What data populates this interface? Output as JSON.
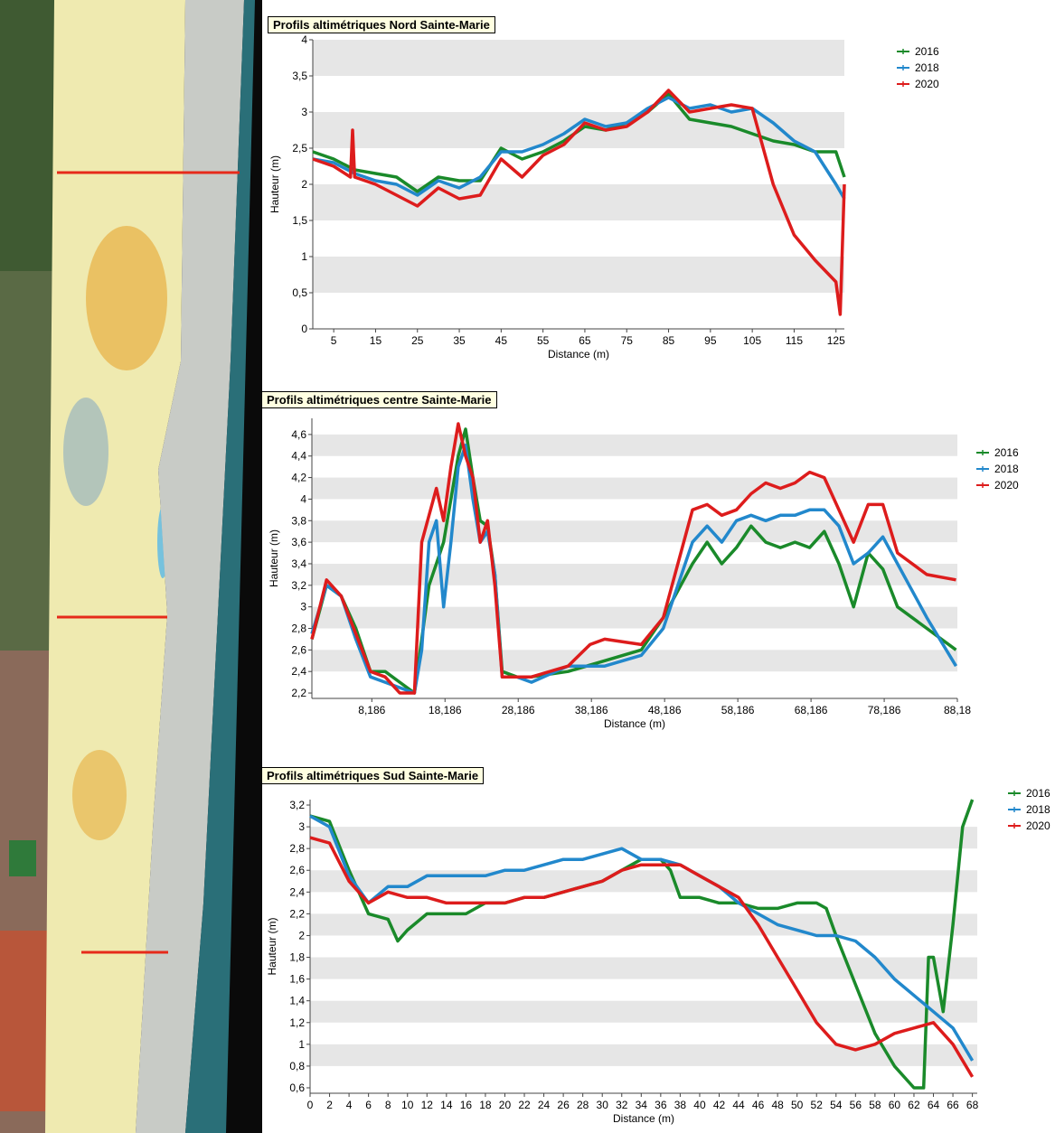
{
  "colors": {
    "2016": "#1a8a2a",
    "2018": "#2288cc",
    "2020": "#dd1c1c",
    "band": "#e6e6e6"
  },
  "map": {
    "description_icon": "aerial-photo"
  },
  "chart_data": [
    {
      "type": "line",
      "title": "Profils altimétriques Nord Sainte-Marie",
      "xlabel": "Distance (m)",
      "ylabel": "Hauteur (m)",
      "xlim": [
        0,
        127
      ],
      "ylim": [
        0,
        4
      ],
      "xticks": [
        5,
        15,
        25,
        35,
        45,
        55,
        65,
        75,
        85,
        95,
        105,
        115,
        125
      ],
      "xtick_labels": [
        "5",
        "15",
        "25",
        "35",
        "45",
        "55",
        "65",
        "75",
        "85",
        "95",
        "105",
        "115",
        "125"
      ],
      "yticks": [
        0,
        0.5,
        1,
        1.5,
        2,
        2.5,
        3,
        3.5,
        4
      ],
      "ytick_labels": [
        "0",
        "0,5",
        "1",
        "1,5",
        "2",
        "2,5",
        "3",
        "3,5",
        "4"
      ],
      "legend_position": "right",
      "series": [
        {
          "name": "2016",
          "color": "#1a8a2a",
          "x": [
            0,
            5,
            10,
            15,
            20,
            25,
            30,
            35,
            40,
            45,
            50,
            55,
            60,
            65,
            70,
            75,
            80,
            85,
            90,
            95,
            100,
            105,
            110,
            115,
            120,
            125,
            127
          ],
          "y": [
            2.45,
            2.35,
            2.2,
            2.15,
            2.1,
            1.9,
            2.1,
            2.05,
            2.05,
            2.5,
            2.35,
            2.45,
            2.6,
            2.8,
            2.75,
            2.85,
            3.0,
            3.25,
            2.9,
            2.85,
            2.8,
            2.7,
            2.6,
            2.55,
            2.45,
            2.45,
            2.1
          ]
        },
        {
          "name": "2018",
          "color": "#2288cc",
          "x": [
            0,
            5,
            10,
            15,
            20,
            25,
            30,
            35,
            40,
            45,
            50,
            55,
            60,
            65,
            70,
            75,
            80,
            85,
            90,
            95,
            100,
            105,
            110,
            115,
            120,
            125,
            127
          ],
          "y": [
            2.35,
            2.3,
            2.15,
            2.05,
            2.0,
            1.85,
            2.05,
            1.95,
            2.1,
            2.45,
            2.45,
            2.55,
            2.7,
            2.9,
            2.8,
            2.85,
            3.05,
            3.2,
            3.05,
            3.1,
            3.0,
            3.05,
            2.85,
            2.6,
            2.45,
            2.0,
            1.8
          ]
        },
        {
          "name": "2020",
          "color": "#dd1c1c",
          "x": [
            0,
            5,
            9,
            9.5,
            10,
            15,
            20,
            25,
            30,
            35,
            40,
            45,
            50,
            55,
            60,
            65,
            70,
            75,
            80,
            85,
            90,
            95,
            100,
            105,
            110,
            115,
            120,
            125,
            126,
            127
          ],
          "y": [
            2.35,
            2.25,
            2.1,
            2.75,
            2.1,
            2.0,
            1.85,
            1.7,
            1.95,
            1.8,
            1.85,
            2.35,
            2.1,
            2.4,
            2.55,
            2.85,
            2.75,
            2.8,
            3.0,
            3.3,
            3.0,
            3.05,
            3.1,
            3.05,
            2.0,
            1.3,
            0.95,
            0.65,
            0.2,
            2.0
          ]
        }
      ]
    },
    {
      "type": "line",
      "title": "Profils altimétriques centre Sainte-Marie",
      "xlabel": "Distance (m)",
      "ylabel": "Hauteur (m)",
      "xlim": [
        0,
        88.18
      ],
      "ylim": [
        2.15,
        4.75
      ],
      "xticks": [
        8.186,
        18.186,
        28.186,
        38.186,
        48.186,
        58.186,
        68.186,
        78.186,
        88.18
      ],
      "xtick_labels": [
        "8,186",
        "18,186",
        "28,186",
        "38,186",
        "48,186",
        "58,186",
        "68,186",
        "78,186",
        "88,18"
      ],
      "yticks": [
        2.2,
        2.4,
        2.6,
        2.8,
        3,
        3.2,
        3.4,
        3.6,
        3.8,
        4,
        4.2,
        4.4,
        4.6
      ],
      "ytick_labels": [
        "2,2",
        "2,4",
        "2,6",
        "2,8",
        "3",
        "3,2",
        "3,4",
        "3,6",
        "3,8",
        "4",
        "4,2",
        "4,4",
        "4,6"
      ],
      "legend_position": "right",
      "series": [
        {
          "name": "2016",
          "color": "#1a8a2a",
          "x": [
            0,
            2,
            4,
            6,
            8,
            10,
            12,
            14,
            16,
            17,
            18,
            19,
            20,
            21,
            22,
            23,
            24,
            25,
            26,
            28,
            30,
            35,
            40,
            45,
            48,
            52,
            54,
            56,
            58,
            60,
            62,
            64,
            66,
            68,
            70,
            72,
            74,
            76,
            78,
            80,
            84,
            88
          ],
          "y": [
            2.7,
            3.2,
            3.1,
            2.8,
            2.4,
            2.4,
            2.3,
            2.2,
            3.2,
            3.4,
            3.6,
            4.0,
            4.4,
            4.65,
            4.2,
            3.8,
            3.75,
            3.3,
            2.4,
            2.35,
            2.35,
            2.4,
            2.5,
            2.6,
            2.9,
            3.4,
            3.6,
            3.4,
            3.55,
            3.75,
            3.6,
            3.55,
            3.6,
            3.55,
            3.7,
            3.4,
            3.0,
            3.5,
            3.35,
            3.0,
            2.8,
            2.6
          ]
        },
        {
          "name": "2018",
          "color": "#2288cc",
          "x": [
            0,
            2,
            4,
            6,
            8,
            10,
            12,
            14,
            15,
            16,
            17,
            18,
            19,
            20,
            21,
            22,
            23,
            24,
            25,
            26,
            28,
            30,
            35,
            40,
            45,
            48,
            52,
            54,
            56,
            58,
            60,
            62,
            64,
            66,
            68,
            70,
            72,
            74,
            76,
            78,
            80,
            84,
            88
          ],
          "y": [
            2.75,
            3.2,
            3.1,
            2.7,
            2.35,
            2.3,
            2.25,
            2.2,
            2.6,
            3.6,
            3.8,
            3.0,
            3.6,
            4.3,
            4.5,
            4.0,
            3.6,
            3.7,
            3.3,
            2.35,
            2.35,
            2.3,
            2.45,
            2.45,
            2.55,
            2.8,
            3.6,
            3.75,
            3.6,
            3.8,
            3.85,
            3.8,
            3.85,
            3.85,
            3.9,
            3.9,
            3.75,
            3.4,
            3.5,
            3.65,
            3.4,
            2.9,
            2.45
          ]
        },
        {
          "name": "2020",
          "color": "#dd1c1c",
          "x": [
            0,
            2,
            4,
            6,
            8,
            10,
            12,
            14,
            15,
            16,
            17,
            18,
            19,
            20,
            21,
            22,
            23,
            24,
            25,
            26,
            28,
            30,
            35,
            38,
            40,
            45,
            48,
            52,
            54,
            56,
            58,
            60,
            62,
            64,
            66,
            68,
            70,
            72,
            74,
            76,
            78,
            80,
            84,
            88
          ],
          "y": [
            2.7,
            3.25,
            3.1,
            2.75,
            2.4,
            2.35,
            2.2,
            2.2,
            3.6,
            3.85,
            4.1,
            3.8,
            4.3,
            4.7,
            4.4,
            4.2,
            3.6,
            3.8,
            3.2,
            2.35,
            2.35,
            2.35,
            2.45,
            2.65,
            2.7,
            2.65,
            2.9,
            3.9,
            3.95,
            3.85,
            3.9,
            4.05,
            4.15,
            4.1,
            4.15,
            4.25,
            4.2,
            3.9,
            3.6,
            3.95,
            3.95,
            3.5,
            3.3,
            3.25
          ]
        }
      ]
    },
    {
      "type": "line",
      "title": "Profils altimétriques Sud Sainte-Marie",
      "xlabel": "Distance (m)",
      "ylabel": "Hauteur (m)",
      "xlim": [
        0,
        68.5
      ],
      "ylim": [
        0.55,
        3.25
      ],
      "xticks": [
        0,
        2,
        4,
        6,
        8,
        10,
        12,
        14,
        16,
        18,
        20,
        22,
        24,
        26,
        28,
        30,
        32,
        34,
        36,
        38,
        40,
        42,
        44,
        46,
        48,
        50,
        52,
        54,
        56,
        58,
        60,
        62,
        64,
        66,
        68
      ],
      "xtick_labels": [
        "0",
        "2",
        "4",
        "6",
        "8",
        "10",
        "12",
        "14",
        "16",
        "18",
        "20",
        "22",
        "24",
        "26",
        "28",
        "30",
        "32",
        "34",
        "36",
        "38",
        "40",
        "42",
        "44",
        "46",
        "48",
        "50",
        "52",
        "54",
        "56",
        "58",
        "60",
        "62",
        "64",
        "66",
        "68"
      ],
      "yticks": [
        0.6,
        0.8,
        1,
        1.2,
        1.4,
        1.6,
        1.8,
        2,
        2.2,
        2.4,
        2.6,
        2.8,
        3,
        3.2
      ],
      "ytick_labels": [
        "0,6",
        "0,8",
        "1",
        "1,2",
        "1,4",
        "1,6",
        "1,8",
        "2",
        "2,2",
        "2,4",
        "2,6",
        "2,8",
        "3",
        "3,2"
      ],
      "legend_position": "right",
      "series": [
        {
          "name": "2016",
          "color": "#1a8a2a",
          "x": [
            0,
            2,
            4,
            6,
            8,
            9,
            10,
            12,
            14,
            16,
            18,
            20,
            22,
            24,
            26,
            28,
            30,
            32,
            34,
            36,
            37,
            38,
            40,
            42,
            44,
            46,
            48,
            50,
            52,
            53,
            54,
            56,
            58,
            60,
            62,
            63,
            63.5,
            64,
            65,
            66,
            67,
            68
          ],
          "y": [
            3.1,
            3.05,
            2.6,
            2.2,
            2.15,
            1.95,
            2.05,
            2.2,
            2.2,
            2.2,
            2.3,
            2.3,
            2.35,
            2.35,
            2.4,
            2.45,
            2.5,
            2.6,
            2.7,
            2.7,
            2.6,
            2.35,
            2.35,
            2.3,
            2.3,
            2.25,
            2.25,
            2.3,
            2.3,
            2.25,
            2.0,
            1.55,
            1.1,
            0.8,
            0.6,
            0.6,
            1.8,
            1.8,
            1.3,
            2.1,
            3.0,
            3.25
          ]
        },
        {
          "name": "2018",
          "color": "#2288cc",
          "x": [
            0,
            2,
            4,
            6,
            8,
            10,
            12,
            14,
            16,
            18,
            20,
            22,
            24,
            26,
            28,
            30,
            32,
            34,
            36,
            38,
            40,
            42,
            44,
            46,
            48,
            50,
            52,
            54,
            56,
            58,
            60,
            62,
            64,
            66,
            68
          ],
          "y": [
            3.1,
            3.0,
            2.55,
            2.3,
            2.45,
            2.45,
            2.55,
            2.55,
            2.55,
            2.55,
            2.6,
            2.6,
            2.65,
            2.7,
            2.7,
            2.75,
            2.8,
            2.7,
            2.7,
            2.65,
            2.55,
            2.45,
            2.3,
            2.2,
            2.1,
            2.05,
            2.0,
            2.0,
            1.95,
            1.8,
            1.6,
            1.45,
            1.3,
            1.15,
            0.85
          ]
        },
        {
          "name": "2020",
          "color": "#dd1c1c",
          "x": [
            0,
            2,
            4,
            6,
            8,
            10,
            12,
            14,
            16,
            18,
            20,
            22,
            24,
            26,
            28,
            30,
            32,
            34,
            36,
            38,
            40,
            42,
            44,
            46,
            48,
            50,
            52,
            54,
            56,
            58,
            60,
            62,
            64,
            66,
            68
          ],
          "y": [
            2.9,
            2.85,
            2.5,
            2.3,
            2.4,
            2.35,
            2.35,
            2.3,
            2.3,
            2.3,
            2.3,
            2.35,
            2.35,
            2.4,
            2.45,
            2.5,
            2.6,
            2.65,
            2.65,
            2.65,
            2.55,
            2.45,
            2.35,
            2.1,
            1.8,
            1.5,
            1.2,
            1.0,
            0.95,
            1.0,
            1.1,
            1.15,
            1.2,
            1.0,
            0.7
          ]
        }
      ]
    }
  ]
}
